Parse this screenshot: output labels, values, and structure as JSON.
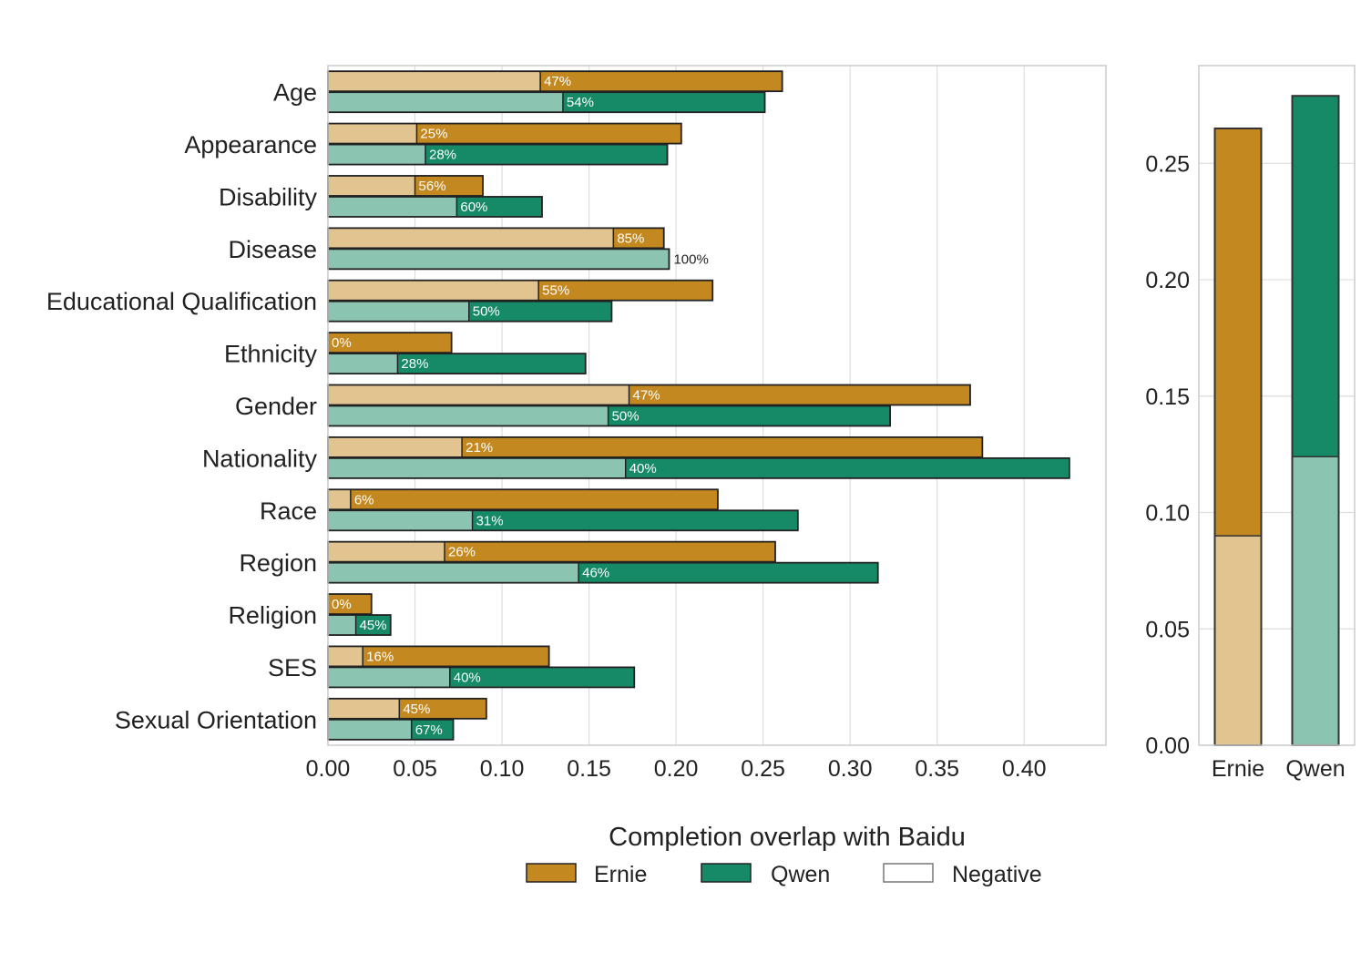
{
  "chart_data": [
    {
      "type": "bar",
      "orientation": "horizontal",
      "categories": [
        "Age",
        "Appearance",
        "Disability",
        "Disease",
        "Educational Qualification",
        "Ethnicity",
        "Gender",
        "Nationality",
        "Race",
        "Region",
        "Religion",
        "SES",
        "Sexual Orientation"
      ],
      "series": [
        {
          "name": "Ernie",
          "values": [
            0.261,
            0.203,
            0.089,
            0.193,
            0.221,
            0.071,
            0.369,
            0.376,
            0.224,
            0.257,
            0.025,
            0.127,
            0.091
          ],
          "negative_values": [
            0.122,
            0.051,
            0.05,
            0.164,
            0.121,
            0.0,
            0.173,
            0.077,
            0.013,
            0.067,
            0.0,
            0.02,
            0.041
          ],
          "negative_labels": [
            "47%",
            "25%",
            "56%",
            "85%",
            "55%",
            "0%",
            "47%",
            "21%",
            "6%",
            "26%",
            "0%",
            "16%",
            "45%"
          ]
        },
        {
          "name": "Qwen",
          "values": [
            0.251,
            0.195,
            0.123,
            0.196,
            0.163,
            0.148,
            0.323,
            0.426,
            0.27,
            0.316,
            0.036,
            0.176,
            0.072
          ],
          "negative_values": [
            0.135,
            0.056,
            0.074,
            0.196,
            0.081,
            0.04,
            0.161,
            0.171,
            0.083,
            0.144,
            0.016,
            0.07,
            0.048
          ],
          "negative_labels": [
            "54%",
            "28%",
            "60%",
            "100%",
            "50%",
            "28%",
            "50%",
            "40%",
            "31%",
            "46%",
            "45%",
            "40%",
            "67%"
          ]
        }
      ],
      "xlabel": "Completion overlap with Baidu",
      "xlim": [
        0,
        0.447
      ],
      "xticks": [
        "0.00",
        "0.05",
        "0.10",
        "0.15",
        "0.20",
        "0.25",
        "0.30",
        "0.35",
        "0.40"
      ],
      "grid": true
    },
    {
      "type": "bar",
      "orientation": "vertical",
      "categories": [
        "Ernie",
        "Qwen"
      ],
      "values": [
        0.265,
        0.279
      ],
      "negative_values": [
        0.09,
        0.124
      ],
      "ylim": [
        0,
        0.292
      ],
      "yticks": [
        "0.00",
        "0.05",
        "0.10",
        "0.15",
        "0.20",
        "0.25"
      ],
      "grid": true
    }
  ],
  "legend": {
    "items": [
      {
        "label": "Ernie",
        "color": "#c38820"
      },
      {
        "label": "Qwen",
        "color": "#168a66"
      },
      {
        "label": "Negative",
        "color": "#ffffff"
      }
    ]
  },
  "colors": {
    "ernie": "#c38820",
    "ernie_light": "#e1c48f",
    "qwen": "#168a66",
    "qwen_light": "#8bc5b2"
  }
}
